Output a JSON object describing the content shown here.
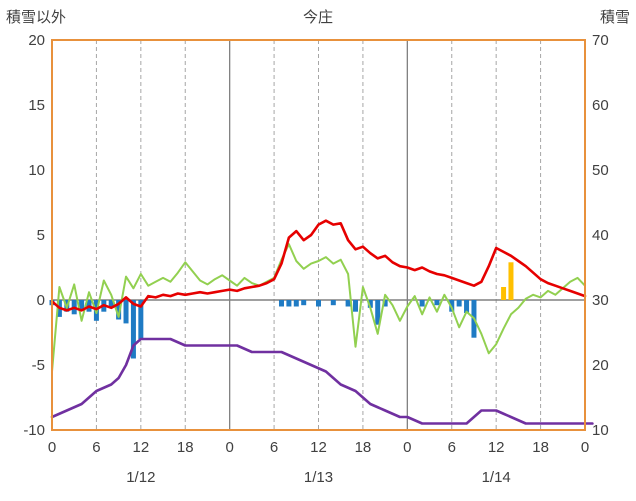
{
  "chart_data": {
    "type": "line+bar combo",
    "title": "今庄",
    "left_axis": {
      "title": "積雪以外",
      "min": -10,
      "max": 20,
      "ticks": [
        20,
        15,
        10,
        5,
        0,
        -5,
        -10
      ]
    },
    "right_axis": {
      "title": "積雪",
      "min": 10,
      "max": 70,
      "ticks": [
        70,
        60,
        50,
        40,
        30,
        20,
        10
      ]
    },
    "x_axis": {
      "hours_span": 72,
      "tick_interval": 6,
      "tick_labels": [
        "0",
        "6",
        "12",
        "18",
        "0",
        "6",
        "12",
        "18",
        "0",
        "6",
        "12",
        "18",
        "0"
      ],
      "date_labels": [
        {
          "label": "1/12",
          "t": 12
        },
        {
          "label": "1/13",
          "t": 36
        },
        {
          "label": "1/14",
          "t": 60
        }
      ],
      "grid": "dashed every 6h, solid at day boundaries"
    },
    "series": [
      {
        "name": "red-line",
        "type": "line",
        "axis": "left",
        "color": "#e60000",
        "width": 2.6,
        "values": [
          -0.1,
          -0.6,
          -0.8,
          -0.6,
          -0.8,
          -0.5,
          -0.7,
          -0.4,
          -0.6,
          -0.3,
          0.2,
          -0.3,
          -0.5,
          0.3,
          0.2,
          0.4,
          0.3,
          0.5,
          0.4,
          0.5,
          0.6,
          0.5,
          0.6,
          0.7,
          0.8,
          0.7,
          0.9,
          1.0,
          1.1,
          1.3,
          1.6,
          2.8,
          4.8,
          5.3,
          4.6,
          5.0,
          5.8,
          6.1,
          5.8,
          5.9,
          4.6,
          3.9,
          4.1,
          3.6,
          3.2,
          3.4,
          2.9,
          2.6,
          2.5,
          2.3,
          2.5,
          2.2,
          2.0,
          1.9,
          1.7,
          1.5,
          1.3,
          1.1,
          1.4,
          2.6,
          4.0,
          3.7,
          3.4,
          3.0,
          2.6,
          2.1,
          1.6,
          1.3,
          1.1,
          0.9,
          0.7,
          0.5,
          0.3
        ]
      },
      {
        "name": "green-line",
        "type": "line",
        "axis": "left",
        "color": "#92d050",
        "width": 2,
        "values": [
          -5.5,
          1.0,
          -0.6,
          1.2,
          -1.6,
          0.6,
          -1.0,
          1.5,
          0.4,
          -1.3,
          1.8,
          0.9,
          2.0,
          1.1,
          1.4,
          1.7,
          1.4,
          2.1,
          2.9,
          2.2,
          1.5,
          1.2,
          1.6,
          1.9,
          1.5,
          1.1,
          1.7,
          1.3,
          1.1,
          1.4,
          1.7,
          3.1,
          4.3,
          3.0,
          2.4,
          2.8,
          3.0,
          3.3,
          2.8,
          3.1,
          2.0,
          -3.6,
          1.0,
          -0.6,
          -2.6,
          0.4,
          -0.4,
          -1.6,
          -0.5,
          0.3,
          -1.1,
          0.2,
          -0.9,
          0.4,
          -0.6,
          -2.1,
          -0.9,
          -1.4,
          -2.6,
          -4.1,
          -3.4,
          -2.2,
          -1.1,
          -0.6,
          0.1,
          0.4,
          0.2,
          0.7,
          0.4,
          0.9,
          1.4,
          1.7,
          1.1
        ]
      },
      {
        "name": "purple-line",
        "type": "line",
        "axis": "right",
        "color": "#7030a0",
        "width": 2.6,
        "values": [
          12,
          12.5,
          13,
          13.5,
          14,
          15,
          16,
          16.5,
          17,
          18,
          20,
          23,
          24,
          24,
          24,
          24,
          24,
          23.5,
          23,
          23,
          23,
          23,
          23,
          23,
          23,
          23,
          22.5,
          22,
          22,
          22,
          22,
          22,
          21.5,
          21,
          20.5,
          20,
          19.5,
          19,
          18,
          17,
          16.5,
          16,
          15,
          14,
          13.5,
          13,
          12.5,
          12,
          12,
          11.5,
          11,
          11,
          11,
          11,
          11,
          11,
          11,
          12,
          13,
          13,
          13,
          12.5,
          12,
          11.5,
          11,
          11,
          11,
          11,
          11,
          11,
          11,
          11,
          11,
          11
        ]
      },
      {
        "name": "blue-bars",
        "type": "bar",
        "axis": "left",
        "color": "#1f7bc4",
        "values": [
          -0.4,
          -1.3,
          -0.9,
          -1.1,
          -0.7,
          -0.9,
          -1.6,
          -0.9,
          -0.6,
          -1.5,
          -1.8,
          -4.5,
          -3.0,
          0,
          0,
          0,
          0,
          0,
          0,
          0,
          0,
          0,
          0,
          0,
          0,
          0,
          0,
          0,
          0,
          0,
          0,
          -0.5,
          -0.5,
          -0.5,
          -0.4,
          0,
          -0.5,
          0,
          -0.4,
          0,
          -0.5,
          -0.9,
          0,
          -0.6,
          -1.9,
          -0.5,
          0,
          0,
          0,
          0,
          -0.5,
          0,
          -0.4,
          0,
          -0.9,
          -0.5,
          -1.0,
          -2.9,
          0,
          0,
          0,
          0,
          0,
          0,
          0,
          0,
          0,
          0,
          0,
          0,
          0,
          0,
          0
        ]
      },
      {
        "name": "yellow-bars",
        "type": "bar",
        "axis": "left",
        "color": "#ffc000",
        "values": [
          0,
          0,
          0,
          0,
          0,
          0,
          0,
          0,
          0,
          0,
          0,
          0,
          0,
          0,
          0,
          0,
          0,
          0,
          0,
          0,
          0,
          0,
          0,
          0,
          0,
          0,
          0,
          0,
          0,
          0,
          0,
          0,
          0,
          0,
          0,
          0,
          0,
          0,
          0,
          0,
          0,
          0,
          0,
          0,
          0,
          0,
          0,
          0,
          0,
          0,
          0,
          0,
          0,
          0,
          0,
          0,
          0,
          0,
          0,
          0,
          0,
          1.0,
          2.9,
          0,
          0,
          0,
          0,
          0,
          0,
          0,
          0,
          0,
          0
        ]
      }
    ],
    "colors": {
      "frame": "#e8913c",
      "zero_line": "#808080",
      "day_grid": "#808080",
      "hour_grid": "#a6a6a6",
      "text": "#404040"
    },
    "legend": "none"
  }
}
